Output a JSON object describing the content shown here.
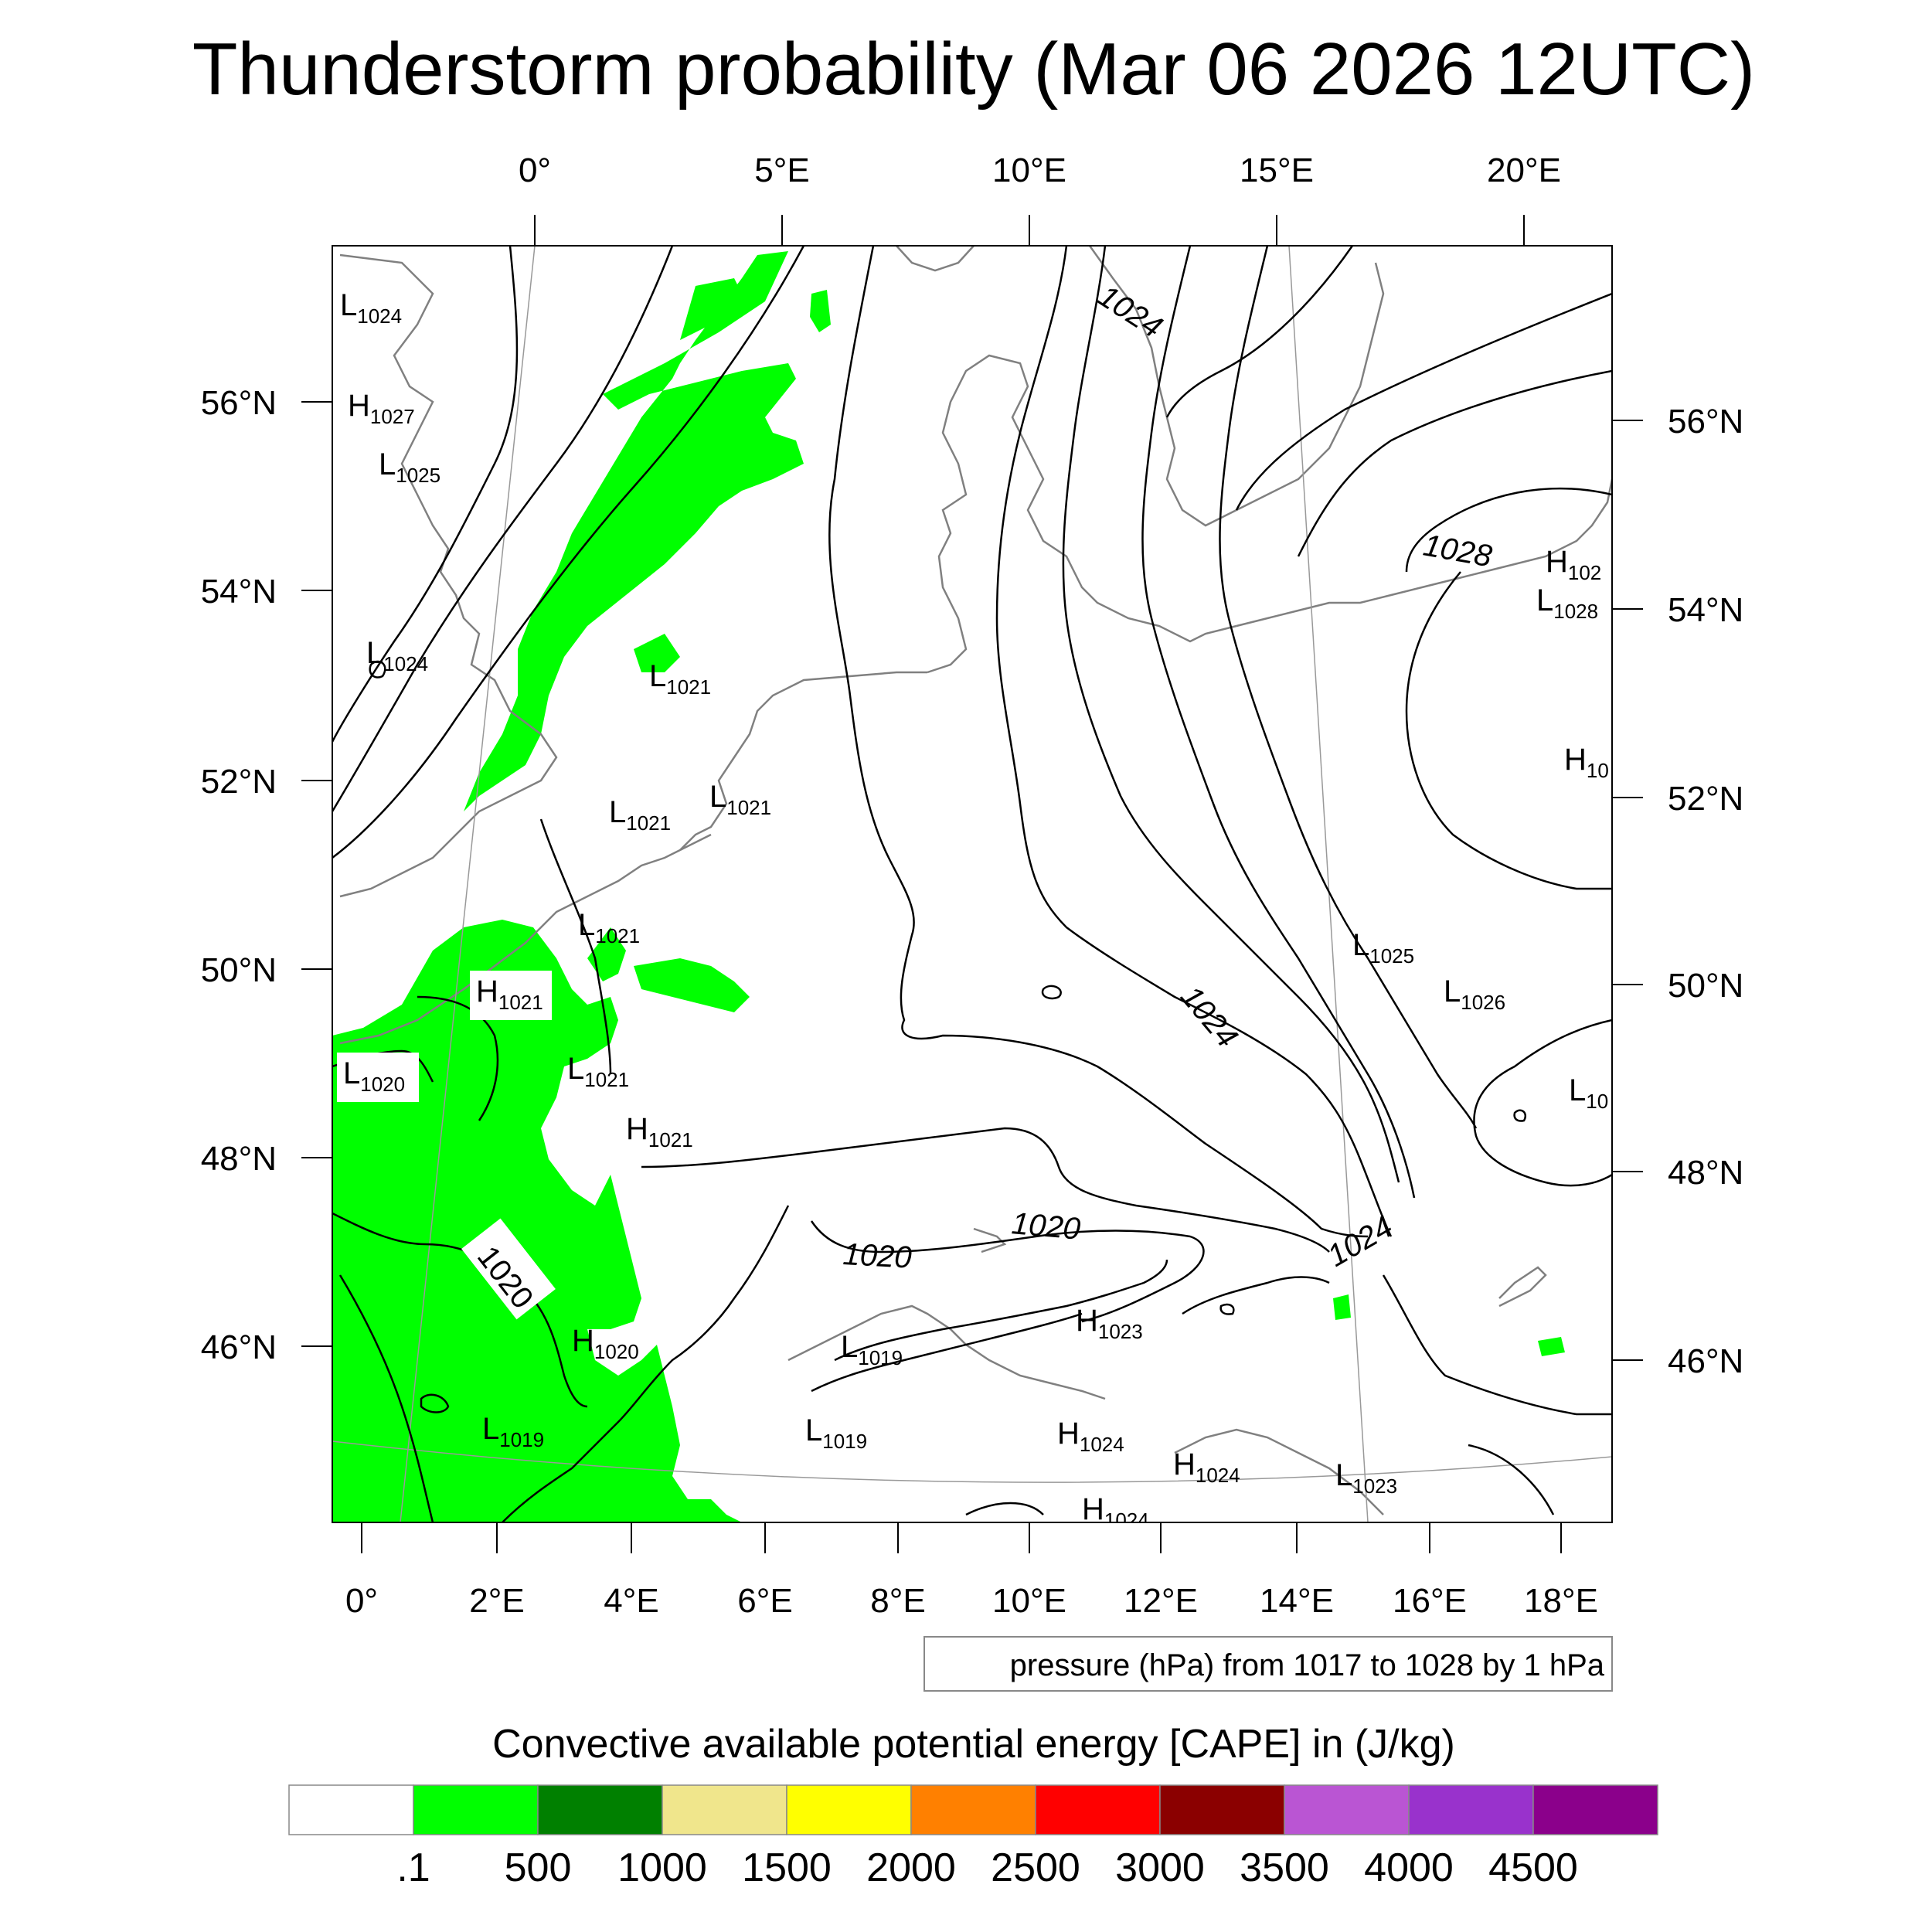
{
  "title": "Thunderstorm probability (Mar 06 2026 12UTC)",
  "axes": {
    "top_lon": [
      "0°",
      "5°E",
      "10°E",
      "15°E",
      "20°E"
    ],
    "bottom_lon": [
      "0°",
      "2°E",
      "4°E",
      "6°E",
      "8°E",
      "10°E",
      "12°E",
      "14°E",
      "16°E",
      "18°E"
    ],
    "left_lat": [
      "56°N",
      "54°N",
      "52°N",
      "50°N",
      "48°N",
      "46°N"
    ],
    "right_lat": [
      "56°N",
      "54°N",
      "52°N",
      "50°N",
      "48°N",
      "46°N"
    ]
  },
  "pressure_systems": [
    {
      "type": "L",
      "value": "1024"
    },
    {
      "type": "H",
      "value": "1027"
    },
    {
      "type": "L",
      "value": "1025"
    },
    {
      "type": "L",
      "value": "1024"
    },
    {
      "type": "L",
      "value": "1021"
    },
    {
      "type": "L",
      "value": "1021"
    },
    {
      "type": "L",
      "value": "1021"
    },
    {
      "type": "L",
      "value": "1021"
    },
    {
      "type": "H",
      "value": "1021"
    },
    {
      "type": "L",
      "value": "1020"
    },
    {
      "type": "L",
      "value": "1021"
    },
    {
      "type": "H",
      "value": "1021"
    },
    {
      "type": "H",
      "value": "1020"
    },
    {
      "type": "L",
      "value": "1019"
    },
    {
      "type": "L",
      "value": "1019"
    },
    {
      "type": "L",
      "value": "1019"
    },
    {
      "type": "H",
      "value": "1023"
    },
    {
      "type": "H",
      "value": "1024"
    },
    {
      "type": "H",
      "value": "1024"
    },
    {
      "type": "H",
      "value": "1024"
    },
    {
      "type": "L",
      "value": "1023"
    },
    {
      "type": "H",
      "value": "102"
    },
    {
      "type": "L",
      "value": "1028"
    },
    {
      "type": "H",
      "value": "10"
    },
    {
      "type": "L",
      "value": "1025"
    },
    {
      "type": "L",
      "value": "1026"
    },
    {
      "type": "L",
      "value": "10"
    }
  ],
  "contour_labels": [
    "1024",
    "1028",
    "1024",
    "1024",
    "1020",
    "1020",
    "1020"
  ],
  "info_box": "pressure (hPa) from 1017 to 1028 by 1 hPa",
  "colorbar": {
    "title": "Convective available potential energy [CAPE] in (J/kg)",
    "colors": [
      "#ffffff",
      "#00ff00",
      "#008000",
      "#f0e68c",
      "#ffff00",
      "#ff8000",
      "#ff0000",
      "#8b0000",
      "#ba55d3",
      "#9932cc",
      "#8b008b"
    ],
    "labels": [
      ".1",
      "500",
      "1000",
      "1500",
      "2000",
      "2500",
      "3000",
      "3500",
      "4000",
      "4500"
    ]
  },
  "colors": {
    "cape_green": "#00ff00",
    "coast": "#808080",
    "isobar": "#000000",
    "frame": "#000000"
  }
}
